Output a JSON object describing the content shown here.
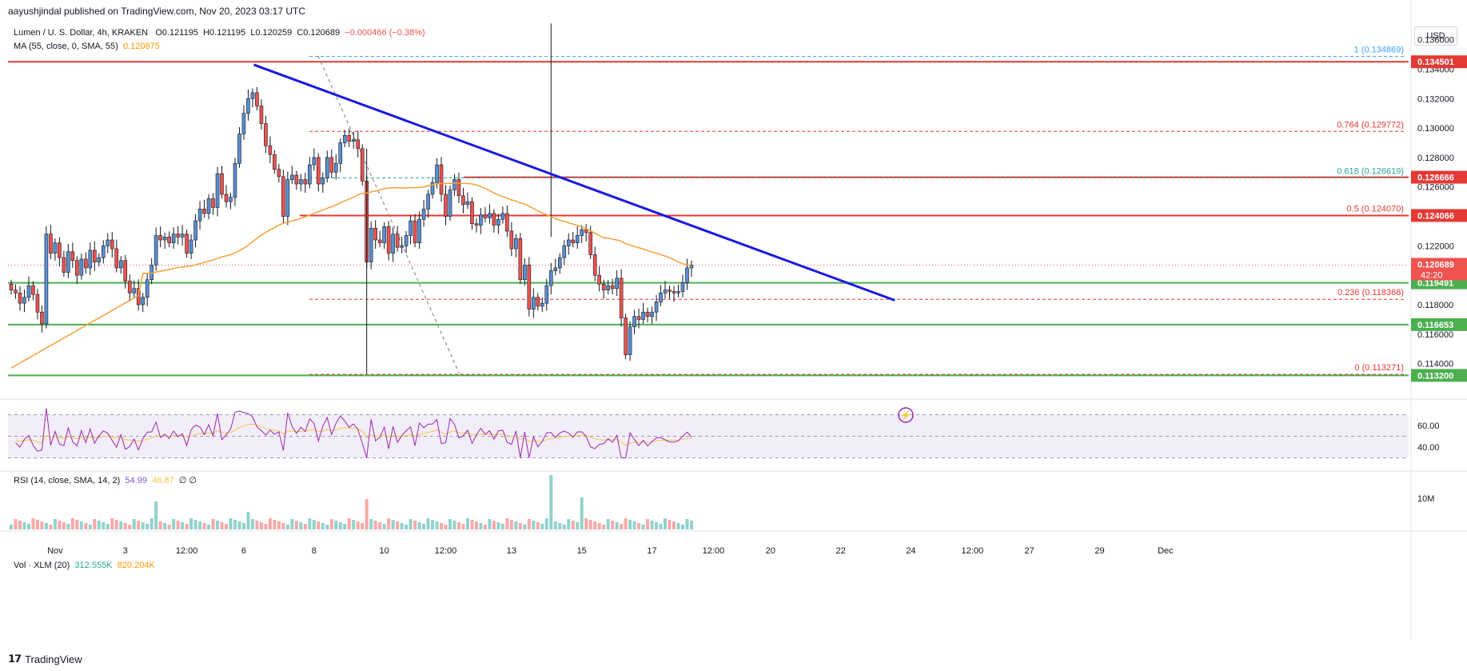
{
  "publisher": "aayushjindal published on TradingView.com, Nov 20, 2023 03:17 UTC",
  "legend": {
    "symbol": "Lumen / U. S. Dollar, 4h, KRAKEN",
    "open": "O0.121195",
    "high": "H0.121195",
    "low": "L0.120259",
    "close": "C0.120689",
    "change": "−0.000466 (−0.38%)",
    "ma_label": "MA (55, close, 0, SMA, 55)",
    "ma_value": "0.120875",
    "rsi_label": "RSI (14, close, SMA, 14, 2)",
    "rsi_value": "54.99",
    "rsi_ma_value": "48.87",
    "rsi_extra": "∅ ∅",
    "vol_label": "Vol · XLM (20)",
    "vol_value": "312.555K",
    "vol_ma_value": "820.204K"
  },
  "currency": "USD",
  "brand": "TradingView",
  "colors": {
    "up": "#5b8fd1",
    "down": "#ef5350",
    "resistance": "#e53935",
    "support": "#4caf50",
    "trendline": "#1a1ae0",
    "ma": "#f2a23a",
    "rsi": "#9c27b0",
    "rsi_ma": "#f7c744",
    "fib": "#e53935",
    "fib_618": "#26a69a",
    "fib_1": "#42a5f5"
  },
  "chart_data": {
    "type": "candlestick",
    "timeframe": "4h",
    "ylim": [
      0.1117,
      0.1375
    ],
    "y_ticks": [
      "0.136000",
      "0.134000",
      "0.132000",
      "0.130000",
      "0.128000",
      "0.126000",
      "0.124000",
      "0.122000",
      "0.118000",
      "0.116000",
      "0.114000"
    ],
    "x_ticks": [
      "Nov",
      "3",
      "12:00",
      "6",
      "8",
      "10",
      "12:00",
      "13",
      "15",
      "17",
      "12:00",
      "20",
      "22",
      "24",
      "12:00",
      "27",
      "29",
      "Dec"
    ],
    "x_tick_index": [
      10,
      26,
      40,
      53,
      69,
      85,
      99,
      114,
      130,
      146,
      160,
      173,
      189,
      205,
      219,
      232,
      248,
      263
    ],
    "current_price": "0.120689",
    "countdown": "42:20",
    "horizontal_levels": [
      {
        "kind": "resistance",
        "value": 0.1345,
        "label": "0.134501"
      },
      {
        "kind": "resistance",
        "value": 0.12666,
        "label": "0.126666"
      },
      {
        "kind": "resistance",
        "value": 0.12406,
        "label": "0.124066"
      },
      {
        "kind": "support",
        "value": 0.11949,
        "label": "0.119491"
      },
      {
        "kind": "support",
        "value": 0.11665,
        "label": "0.116653"
      },
      {
        "kind": "support",
        "value": 0.1132,
        "label": "0.113200"
      }
    ],
    "fibonacci": [
      {
        "ratio": "1",
        "value": 0.134869,
        "label": "1 (0.134869)"
      },
      {
        "ratio": "0.764",
        "value": 0.129772,
        "label": "0.764 (0.129772)"
      },
      {
        "ratio": "0.618",
        "value": 0.126619,
        "label": "0.618 (0.126619)"
      },
      {
        "ratio": "0.5",
        "value": 0.12407,
        "label": "0.5 (0.124070)"
      },
      {
        "ratio": "0.236",
        "value": 0.118368,
        "label": "0.236 (0.118368)"
      },
      {
        "ratio": "0",
        "value": 0.113271,
        "label": "0 (0.113271)"
      }
    ],
    "trendline": {
      "start_index": 52,
      "start_value": 0.1343,
      "end_index": 174,
      "end_value": 0.1183
    },
    "fib_swing": {
      "start_index": 55,
      "start_value": 0.1349,
      "end_index": 81,
      "end_value": 0.1133
    },
    "candles_close": [
      0.119,
      0.1188,
      0.1181,
      0.1185,
      0.1193,
      0.1187,
      0.1175,
      0.1167,
      0.1228,
      0.1215,
      0.1222,
      0.1212,
      0.1202,
      0.1216,
      0.121,
      0.12,
      0.1211,
      0.1205,
      0.1217,
      0.1209,
      0.1212,
      0.122,
      0.1224,
      0.1218,
      0.1205,
      0.121,
      0.1196,
      0.1188,
      0.1191,
      0.118,
      0.1185,
      0.1197,
      0.1207,
      0.1227,
      0.1224,
      0.1226,
      0.1222,
      0.1228,
      0.1226,
      0.1228,
      0.1215,
      0.1224,
      0.1237,
      0.1245,
      0.1242,
      0.1252,
      0.1246,
      0.1269,
      0.1255,
      0.125,
      0.1253,
      0.1276,
      0.1296,
      0.131,
      0.132,
      0.1324,
      0.1315,
      0.1303,
      0.1288,
      0.1282,
      0.1272,
      0.1267,
      0.124,
      0.1265,
      0.1268,
      0.1262,
      0.1265,
      0.1262,
      0.1275,
      0.128,
      0.1262,
      0.1266,
      0.128,
      0.127,
      0.1276,
      0.129,
      0.1295,
      0.1291,
      0.1292,
      0.1286,
      0.1264,
      0.1209,
      0.1232,
      0.1224,
      0.1222,
      0.1233,
      0.1215,
      0.1228,
      0.1219,
      0.122,
      0.1227,
      0.1237,
      0.1222,
      0.1238,
      0.1245,
      0.1255,
      0.1263,
      0.1275,
      0.1255,
      0.124,
      0.1258,
      0.1265,
      0.1254,
      0.1248,
      0.125,
      0.1235,
      0.1234,
      0.1241,
      0.1239,
      0.1242,
      0.1234,
      0.1238,
      0.1242,
      0.123,
      0.1218,
      0.1225,
      0.1197,
      0.1207,
      0.1177,
      0.1185,
      0.1179,
      0.1181,
      0.1193,
      0.1203,
      0.1205,
      0.1212,
      0.122,
      0.1224,
      0.1222,
      0.1227,
      0.1231,
      0.1229,
      0.1214,
      0.12,
      0.1194,
      0.119,
      0.1193,
      0.1191,
      0.1198,
      0.1171,
      0.1146,
      0.1165,
      0.1172,
      0.117,
      0.1175,
      0.1172,
      0.1175,
      0.1182,
      0.1188,
      0.119,
      0.1189,
      0.1188,
      0.1189,
      0.1195,
      0.1205,
      0.1207
    ]
  }
}
